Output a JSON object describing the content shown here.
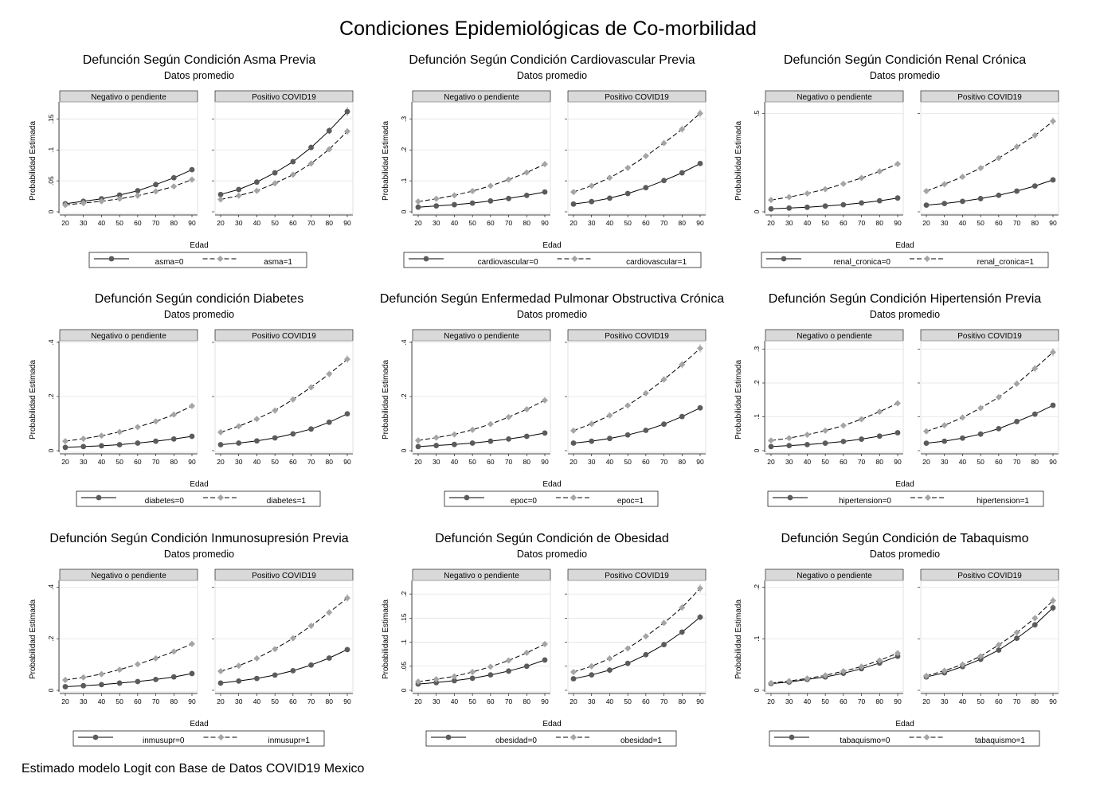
{
  "title": "Condiciones Epidemiológicas de Co-morbilidad",
  "footnote": "Estimado modelo Logit con Base de Datos COVID19 Mexico",
  "colors": {
    "series0": "#5b5b5b",
    "series1": "#a5a5a5",
    "strip": "#d9d9d9",
    "grid": "#e3e3e3"
  },
  "shared": {
    "subtitle": "Datos promedio",
    "ylabel": "Probabilidad Estimada",
    "xlabel": "Edad",
    "panels": [
      "Negativo o pendiente",
      "Positivo COVID19"
    ],
    "x": [
      20,
      30,
      40,
      50,
      60,
      70,
      80,
      90
    ]
  },
  "chart_data": [
    {
      "type": "line",
      "title": "Defunción Según Condición Asma Previa",
      "ylim": [
        0,
        0.175
      ],
      "yticks": [
        0,
        0.05,
        0.1,
        0.15
      ],
      "ytick_labels": [
        "0",
        ".05",
        ".1",
        ".15"
      ],
      "series": [
        {
          "name": "asma=0",
          "panels": [
            [
              0.013,
              0.017,
              0.021,
              0.027,
              0.034,
              0.044,
              0.055,
              0.068
            ],
            [
              0.028,
              0.036,
              0.048,
              0.063,
              0.081,
              0.104,
              0.131,
              0.162
            ]
          ]
        },
        {
          "name": "asma=1",
          "panels": [
            [
              0.011,
              0.014,
              0.017,
              0.021,
              0.026,
              0.033,
              0.041,
              0.052
            ],
            [
              0.02,
              0.026,
              0.034,
              0.046,
              0.06,
              0.078,
              0.101,
              0.13
            ]
          ]
        }
      ]
    },
    {
      "type": "line",
      "title": "Defunción Según Condición Cardiovascular Previa",
      "ylim": [
        0,
        0.35
      ],
      "yticks": [
        0,
        0.1,
        0.2,
        0.3
      ],
      "ytick_labels": [
        "0",
        ".1",
        ".2",
        ".3"
      ],
      "series": [
        {
          "name": "cardiovascular=0",
          "panels": [
            [
              0.015,
              0.019,
              0.023,
              0.028,
              0.035,
              0.043,
              0.053,
              0.064
            ],
            [
              0.025,
              0.033,
              0.044,
              0.059,
              0.078,
              0.101,
              0.126,
              0.156
            ]
          ]
        },
        {
          "name": "cardiovascular=1",
          "panels": [
            [
              0.033,
              0.042,
              0.053,
              0.067,
              0.084,
              0.104,
              0.127,
              0.154
            ],
            [
              0.064,
              0.084,
              0.11,
              0.142,
              0.18,
              0.222,
              0.267,
              0.318
            ]
          ]
        }
      ]
    },
    {
      "type": "line",
      "title": "Defunción Según Condición Renal Crónica",
      "ylim": [
        0,
        0.55
      ],
      "yticks": [
        0,
        0.5
      ],
      "ytick_labels": [
        "0",
        ".5"
      ],
      "series": [
        {
          "name": "renal_cronica=0",
          "panels": [
            [
              0.015,
              0.019,
              0.023,
              0.029,
              0.036,
              0.045,
              0.056,
              0.07
            ],
            [
              0.034,
              0.042,
              0.053,
              0.067,
              0.084,
              0.105,
              0.131,
              0.162
            ]
          ]
        },
        {
          "name": "renal_cronica=1",
          "panels": [
            [
              0.06,
              0.075,
              0.093,
              0.115,
              0.142,
              0.172,
              0.205,
              0.243
            ],
            [
              0.105,
              0.14,
              0.178,
              0.222,
              0.273,
              0.33,
              0.388,
              0.46
            ]
          ]
        }
      ]
    },
    {
      "type": "line",
      "title": "Defunción Según condición Diabetes",
      "ylim": [
        0,
        0.4
      ],
      "yticks": [
        0,
        0.2,
        0.4
      ],
      "ytick_labels": [
        "0",
        ".2",
        ".4"
      ],
      "series": [
        {
          "name": "diabetes=0",
          "panels": [
            [
              0.012,
              0.015,
              0.018,
              0.022,
              0.028,
              0.035,
              0.043,
              0.053
            ],
            [
              0.022,
              0.028,
              0.036,
              0.047,
              0.062,
              0.08,
              0.105,
              0.136
            ]
          ]
        },
        {
          "name": "diabetes=1",
          "panels": [
            [
              0.035,
              0.044,
              0.055,
              0.069,
              0.087,
              0.108,
              0.133,
              0.165
            ],
            [
              0.068,
              0.09,
              0.117,
              0.148,
              0.189,
              0.234,
              0.283,
              0.338
            ]
          ]
        }
      ]
    },
    {
      "type": "line",
      "title": "Defunción Según Enfermedad Pulmonar Obstructiva Crónica",
      "ylim": [
        0,
        0.4
      ],
      "yticks": [
        0,
        0.2,
        0.4
      ],
      "ytick_labels": [
        "0",
        ".2",
        ".4"
      ],
      "series": [
        {
          "name": "epoc=0",
          "panels": [
            [
              0.015,
              0.019,
              0.023,
              0.028,
              0.035,
              0.043,
              0.053,
              0.065
            ],
            [
              0.028,
              0.035,
              0.045,
              0.058,
              0.075,
              0.098,
              0.126,
              0.158
            ]
          ]
        },
        {
          "name": "epoc=1",
          "panels": [
            [
              0.038,
              0.048,
              0.06,
              0.077,
              0.098,
              0.124,
              0.153,
              0.186
            ],
            [
              0.074,
              0.099,
              0.13,
              0.167,
              0.212,
              0.263,
              0.318,
              0.378
            ]
          ]
        }
      ]
    },
    {
      "type": "line",
      "title": "Defunción Según Condición Hipertensión Previa",
      "ylim": [
        0,
        0.32
      ],
      "yticks": [
        0,
        0.1,
        0.2,
        0.3
      ],
      "ytick_labels": [
        "0",
        ".1",
        ".2",
        ".3"
      ],
      "series": [
        {
          "name": "hipertension=0",
          "panels": [
            [
              0.012,
              0.015,
              0.018,
              0.022,
              0.027,
              0.034,
              0.043,
              0.053
            ],
            [
              0.022,
              0.028,
              0.037,
              0.049,
              0.065,
              0.086,
              0.108,
              0.134
            ]
          ]
        },
        {
          "name": "hipertension=1",
          "panels": [
            [
              0.03,
              0.037,
              0.047,
              0.059,
              0.074,
              0.093,
              0.115,
              0.14
            ],
            [
              0.057,
              0.075,
              0.098,
              0.126,
              0.158,
              0.198,
              0.243,
              0.291
            ]
          ]
        }
      ]
    },
    {
      "type": "line",
      "title": "Defunción Según Condición Inmunosupresión Previa",
      "ylim": [
        0,
        0.42
      ],
      "yticks": [
        0,
        0.2,
        0.4
      ],
      "ytick_labels": [
        "0",
        ".2",
        ".4"
      ],
      "series": [
        {
          "name": "inmusupr=0",
          "panels": [
            [
              0.014,
              0.018,
              0.022,
              0.028,
              0.034,
              0.042,
              0.052,
              0.065
            ],
            [
              0.028,
              0.036,
              0.046,
              0.059,
              0.076,
              0.098,
              0.125,
              0.158
            ]
          ]
        },
        {
          "name": "inmusupr=1",
          "panels": [
            [
              0.04,
              0.05,
              0.063,
              0.08,
              0.101,
              0.124,
              0.15,
              0.18
            ],
            [
              0.074,
              0.095,
              0.124,
              0.16,
              0.202,
              0.25,
              0.302,
              0.358
            ]
          ]
        }
      ]
    },
    {
      "type": "line",
      "title": "Defunción Según Condición de Obesidad",
      "ylim": [
        0,
        0.225
      ],
      "yticks": [
        0,
        0.05,
        0.1,
        0.15,
        0.2
      ],
      "ytick_labels": [
        "0",
        ".05",
        ".1",
        ".15",
        ".2"
      ],
      "series": [
        {
          "name": "obesidad=0",
          "panels": [
            [
              0.013,
              0.016,
              0.02,
              0.025,
              0.032,
              0.04,
              0.05,
              0.063
            ],
            [
              0.024,
              0.032,
              0.042,
              0.056,
              0.074,
              0.095,
              0.121,
              0.152
            ]
          ]
        },
        {
          "name": "obesidad=1",
          "panels": [
            [
              0.018,
              0.023,
              0.029,
              0.038,
              0.049,
              0.062,
              0.078,
              0.096
            ],
            [
              0.038,
              0.05,
              0.066,
              0.087,
              0.112,
              0.14,
              0.172,
              0.212
            ]
          ]
        }
      ]
    },
    {
      "type": "line",
      "title": "Defunción Según Condición de Tabaquismo",
      "ylim": [
        0,
        0.21
      ],
      "yticks": [
        0,
        0.1,
        0.2
      ],
      "ytick_labels": [
        "0",
        ".1",
        ".2"
      ],
      "series": [
        {
          "name": "tabaquismo=0",
          "panels": [
            [
              0.013,
              0.016,
              0.021,
              0.026,
              0.033,
              0.042,
              0.053,
              0.066
            ],
            [
              0.026,
              0.034,
              0.046,
              0.06,
              0.078,
              0.101,
              0.127,
              0.16
            ]
          ]
        },
        {
          "name": "tabaquismo=1",
          "panels": [
            [
              0.014,
              0.018,
              0.023,
              0.029,
              0.037,
              0.046,
              0.058,
              0.072
            ],
            [
              0.028,
              0.038,
              0.05,
              0.066,
              0.088,
              0.112,
              0.14,
              0.174
            ]
          ]
        }
      ]
    }
  ]
}
